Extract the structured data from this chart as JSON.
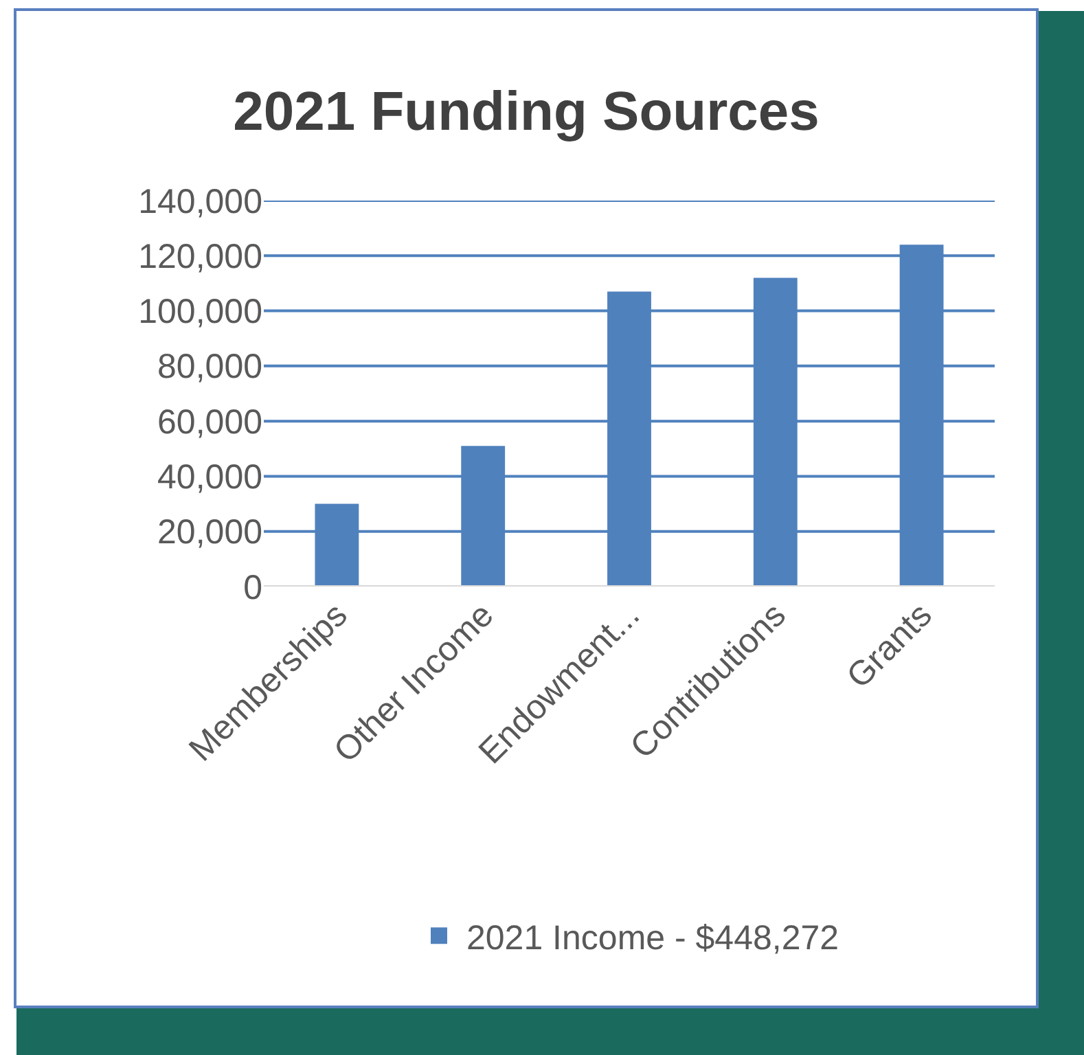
{
  "chart_data": {
    "type": "bar",
    "title": "2021 Funding Sources",
    "categories": [
      "Memberships",
      "Other Income",
      "Endowment...",
      "Contributions",
      "Grants"
    ],
    "series": [
      {
        "name": "2021 Income - $448,272",
        "color": "#4f81bd",
        "values": [
          30000,
          51000,
          107000,
          112000,
          124000
        ]
      }
    ],
    "ylim": [
      0,
      140000
    ],
    "yticks": [
      {
        "value": 0,
        "label": "0"
      },
      {
        "value": 20000,
        "label": "20,000"
      },
      {
        "value": 40000,
        "label": "40,000"
      },
      {
        "value": 60000,
        "label": "60,000"
      },
      {
        "value": 80000,
        "label": "80,000"
      },
      {
        "value": 100000,
        "label": "100,000"
      },
      {
        "value": 120000,
        "label": "120,000"
      },
      {
        "value": 140000,
        "label": "140,000"
      }
    ],
    "grid": "y",
    "legend": "bottom"
  }
}
